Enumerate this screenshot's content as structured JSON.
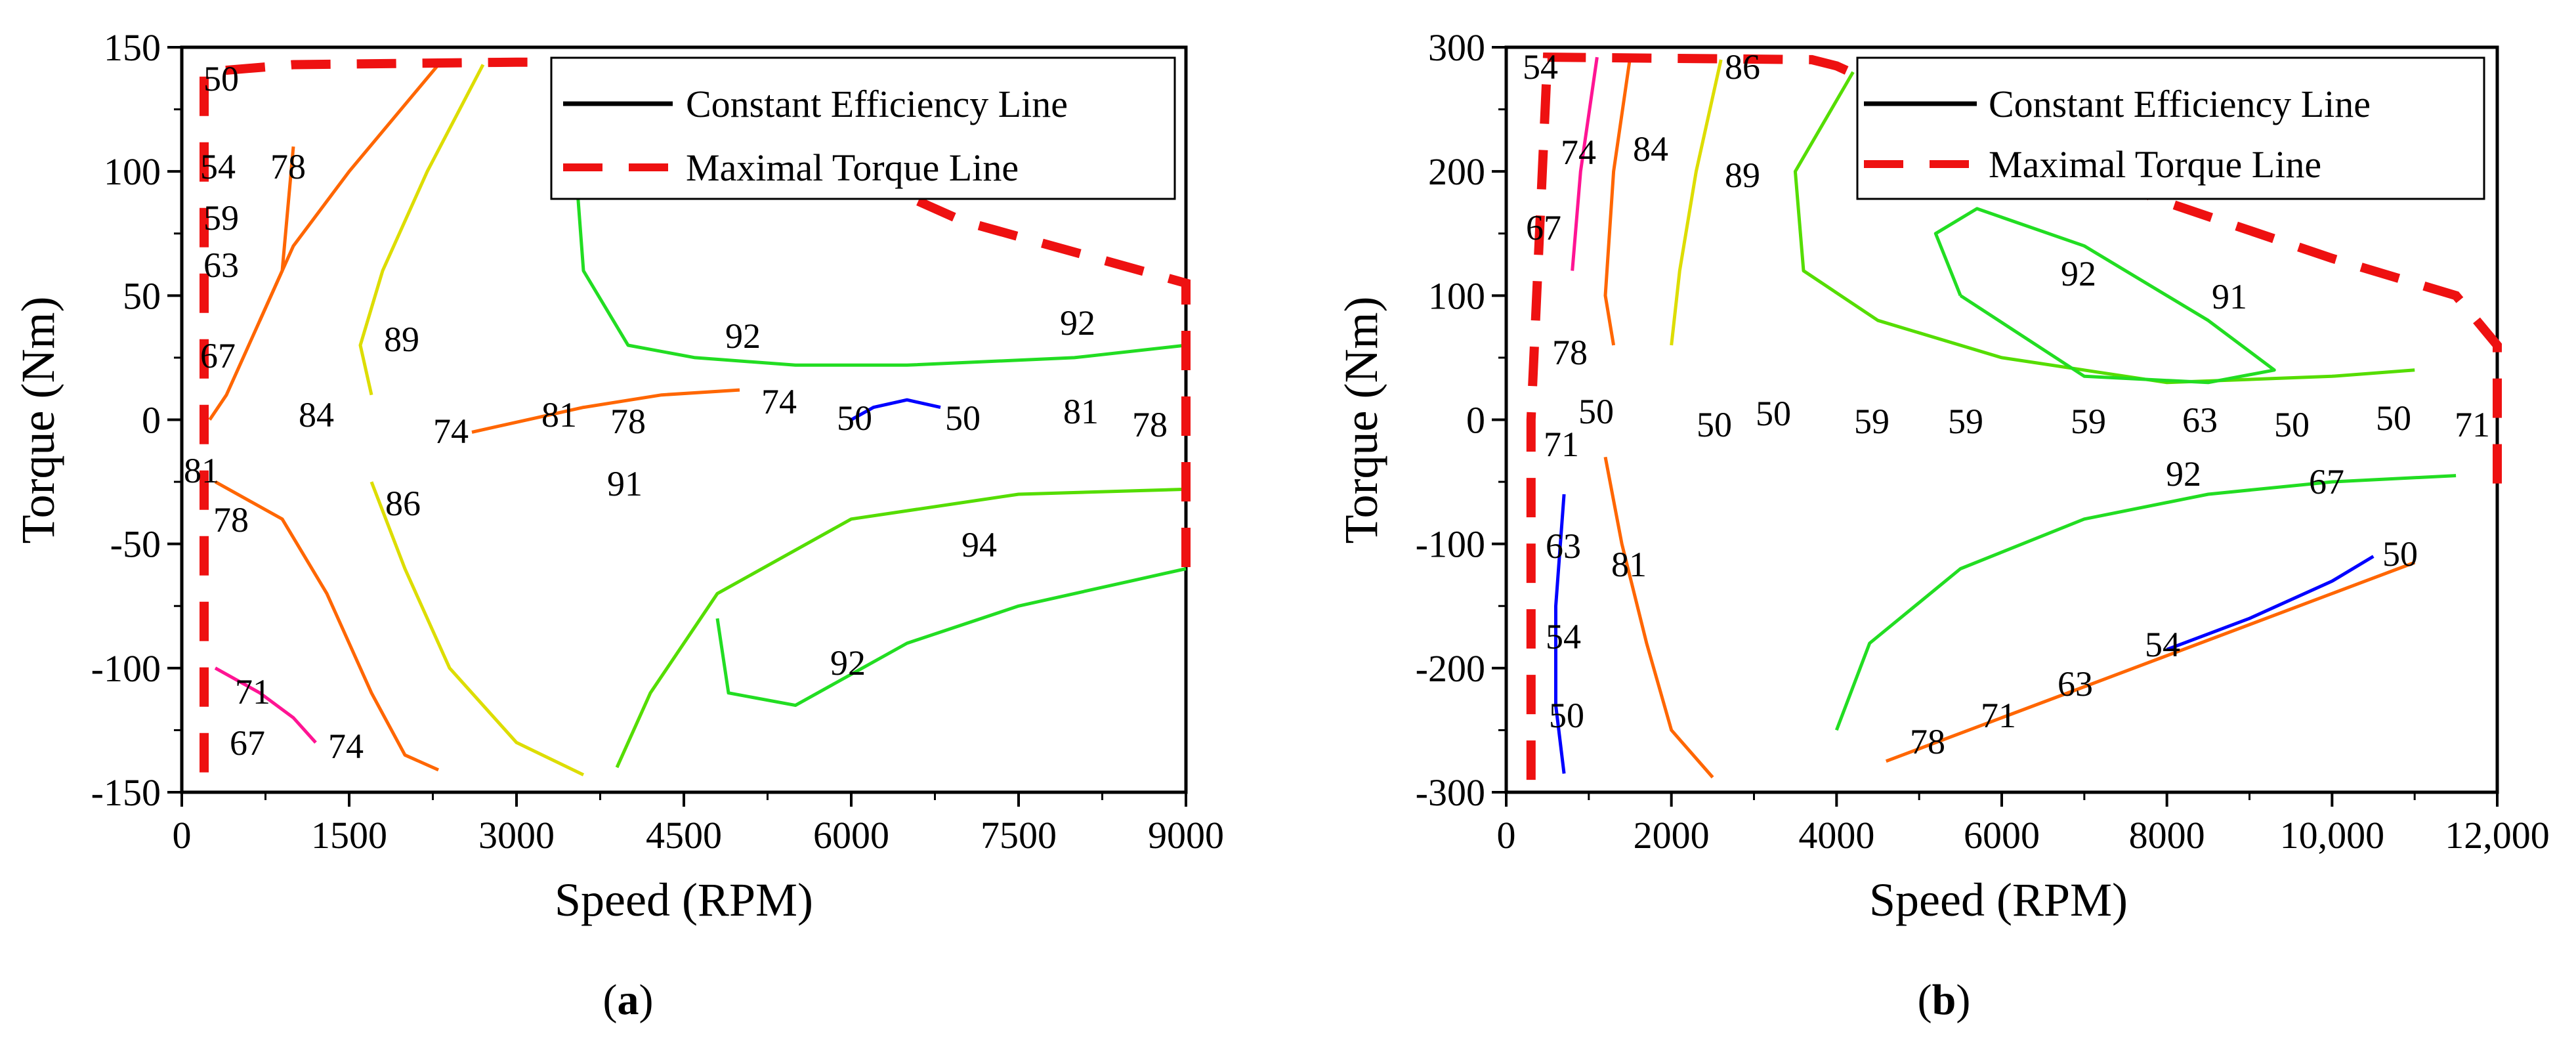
{
  "figure": {
    "panels": [
      "(a)",
      "(b)"
    ]
  },
  "legend": {
    "line1": "Constant Efficiency Line",
    "line2": "Maximal Torque Line"
  },
  "chart_data": [
    {
      "type": "contour",
      "caption": "(a)",
      "xlabel": "Speed (RPM)",
      "ylabel": "Torque (Nm)",
      "xlim": [
        0,
        9000
      ],
      "ylim": [
        -150,
        150
      ],
      "xticks": [
        0,
        1500,
        3000,
        4500,
        6000,
        7500,
        9000
      ],
      "xtick_labels": [
        "0",
        "1500",
        "3000",
        "4500",
        "6000",
        "7500",
        "9000"
      ],
      "yticks": [
        -150,
        -100,
        -50,
        0,
        50,
        100,
        150
      ],
      "ytick_labels": [
        "-150",
        "-100",
        "-50",
        "0",
        "50",
        "100",
        "150"
      ],
      "legend": [
        "Constant Efficiency Line",
        "Maximal Torque Line"
      ],
      "max_torque_line": {
        "x": [
          200,
          200,
          200,
          1000,
          3000,
          3700,
          4000,
          5000,
          7000,
          9000,
          9000
        ],
        "y": [
          -142,
          0,
          140,
          143,
          144,
          144,
          141,
          120,
          80,
          55,
          -65
        ]
      },
      "contours": [
        {
          "level": 92,
          "color": "#22dd22",
          "x": [
            3700,
            3500,
            3600,
            4000,
            4600,
            5500,
            6500,
            8000,
            9000
          ],
          "y": [
            144,
            120,
            60,
            30,
            25,
            22,
            22,
            25,
            30
          ]
        },
        {
          "level": 92,
          "color": "#22dd22",
          "x": [
            4800,
            4900,
            5500,
            6500,
            7500,
            8500,
            9000
          ],
          "y": [
            -80,
            -110,
            -115,
            -90,
            -75,
            -65,
            -60
          ]
        },
        {
          "level": 91,
          "color": "#55dd00",
          "x": [
            3900,
            4200,
            4800,
            6000,
            7500,
            9000
          ],
          "y": [
            -140,
            -110,
            -70,
            -40,
            -30,
            -28
          ]
        },
        {
          "level": 89,
          "color": "#dddd00",
          "x": [
            2700,
            2200,
            1800,
            1600,
            1700
          ],
          "y": [
            143,
            100,
            60,
            30,
            10
          ]
        },
        {
          "level": 86,
          "color": "#dddd00",
          "x": [
            1700,
            2000,
            2400,
            3000,
            3600
          ],
          "y": [
            -25,
            -60,
            -100,
            -130,
            -143
          ]
        },
        {
          "level": 84,
          "color": "#ff6600",
          "x": [
            2300,
            1500,
            1000,
            700,
            400,
            250
          ],
          "y": [
            143,
            100,
            70,
            40,
            10,
            0
          ]
        },
        {
          "level": 81,
          "color": "#ff6600",
          "x": [
            300,
            900,
            1300,
            1700,
            2000,
            2300
          ],
          "y": [
            -25,
            -40,
            -70,
            -110,
            -135,
            -141
          ]
        },
        {
          "level": 78,
          "color": "#ff6600",
          "x": [
            1000,
            900,
            700
          ],
          "y": [
            110,
            60,
            40
          ]
        },
        {
          "level": 74,
          "color": "#ff6600",
          "x": [
            2600,
            3600,
            4300,
            5000
          ],
          "y": [
            -5,
            5,
            10,
            12
          ]
        },
        {
          "level": 71,
          "color": "#ff1493",
          "x": [
            300,
            700,
            1000,
            1200
          ],
          "y": [
            -100,
            -110,
            -120,
            -130
          ]
        },
        {
          "level": 50,
          "color": "#0000ff",
          "x": [
            6000,
            6200,
            6500,
            6800
          ],
          "y": [
            0,
            5,
            8,
            5
          ]
        }
      ],
      "contour_labels": [
        "50",
        "54",
        "78",
        "59",
        "63",
        "67",
        "89",
        "84",
        "92",
        "74",
        "81",
        "78",
        "74",
        "50",
        "50",
        "81",
        "92",
        "78",
        "81",
        "91",
        "78",
        "86",
        "94",
        "92",
        "71",
        "67",
        "74"
      ]
    },
    {
      "type": "contour",
      "caption": "(b)",
      "xlabel": "Speed (RPM)",
      "ylabel": "Torque (Nm)",
      "xlim": [
        0,
        12000
      ],
      "ylim": [
        -300,
        300
      ],
      "xticks": [
        0,
        2000,
        4000,
        6000,
        8000,
        10000,
        12000
      ],
      "xtick_labels": [
        "0",
        "2000",
        "4000",
        "6000",
        "8000",
        "10,000",
        "12,000"
      ],
      "yticks": [
        -300,
        -200,
        -100,
        0,
        100,
        200,
        300
      ],
      "ytick_labels": [
        "-300",
        "-200",
        "-100",
        "0",
        "100",
        "200",
        "300"
      ],
      "legend": [
        "Constant Efficiency Line",
        "Maximal Torque Line"
      ],
      "max_torque_line": {
        "x": [
          300,
          300,
          500,
          3700,
          4000,
          6000,
          8000,
          10000,
          11500,
          12000,
          12000
        ],
        "y": [
          -290,
          0,
          292,
          290,
          285,
          225,
          175,
          130,
          100,
          60,
          -60
        ]
      },
      "contours": [
        {
          "level": 91,
          "color": "#55dd00",
          "x": [
            4200,
            3500,
            3600,
            4500,
            6000,
            8000,
            10000,
            11000
          ],
          "y": [
            280,
            200,
            120,
            80,
            50,
            30,
            35,
            40
          ]
        },
        {
          "level": 92,
          "color": "#22dd22",
          "x": [
            5500,
            5200,
            5700,
            7000,
            8500,
            9300,
            8500,
            7000,
            5500
          ],
          "y": [
            100,
            150,
            170,
            140,
            80,
            40,
            30,
            35,
            100
          ]
        },
        {
          "level": 92,
          "color": "#22dd22",
          "x": [
            4000,
            4400,
            5500,
            7000,
            8500,
            10000,
            11500
          ],
          "y": [
            -250,
            -180,
            -120,
            -80,
            -60,
            -50,
            -45
          ]
        },
        {
          "level": 89,
          "color": "#dddd00",
          "x": [
            2600,
            2300,
            2100,
            2000
          ],
          "y": [
            290,
            200,
            120,
            60
          ]
        },
        {
          "level": 84,
          "color": "#ff6600",
          "x": [
            1500,
            1300,
            1200,
            1300
          ],
          "y": [
            292,
            200,
            100,
            60
          ]
        },
        {
          "level": 81,
          "color": "#ff6600",
          "x": [
            1200,
            1400,
            1700,
            2000,
            2500
          ],
          "y": [
            -30,
            -100,
            -180,
            -250,
            -288
          ]
        },
        {
          "level": 78,
          "color": "#ff6600",
          "x": [
            4600,
            6000,
            8000,
            10000,
            11000
          ],
          "y": [
            -275,
            -240,
            -190,
            -140,
            -115
          ]
        },
        {
          "level": 74,
          "color": "#ff1493",
          "x": [
            1100,
            900,
            800
          ],
          "y": [
            292,
            200,
            120
          ]
        },
        {
          "level": 50,
          "color": "#0000ff",
          "x": [
            700,
            600,
            600,
            700
          ],
          "y": [
            -60,
            -150,
            -230,
            -285
          ]
        },
        {
          "level": 50,
          "color": "#0000ff",
          "x": [
            8000,
            9000,
            10000,
            10500
          ],
          "y": [
            -185,
            -160,
            -130,
            -110
          ]
        }
      ],
      "contour_labels": [
        "54",
        "86",
        "74",
        "84",
        "89",
        "67",
        "92",
        "91",
        "78",
        "50",
        "50",
        "50",
        "59",
        "59",
        "59",
        "63",
        "50",
        "50",
        "71",
        "71",
        "92",
        "67",
        "63",
        "81",
        "50",
        "54",
        "54",
        "63",
        "71",
        "78",
        "50"
      ]
    }
  ]
}
